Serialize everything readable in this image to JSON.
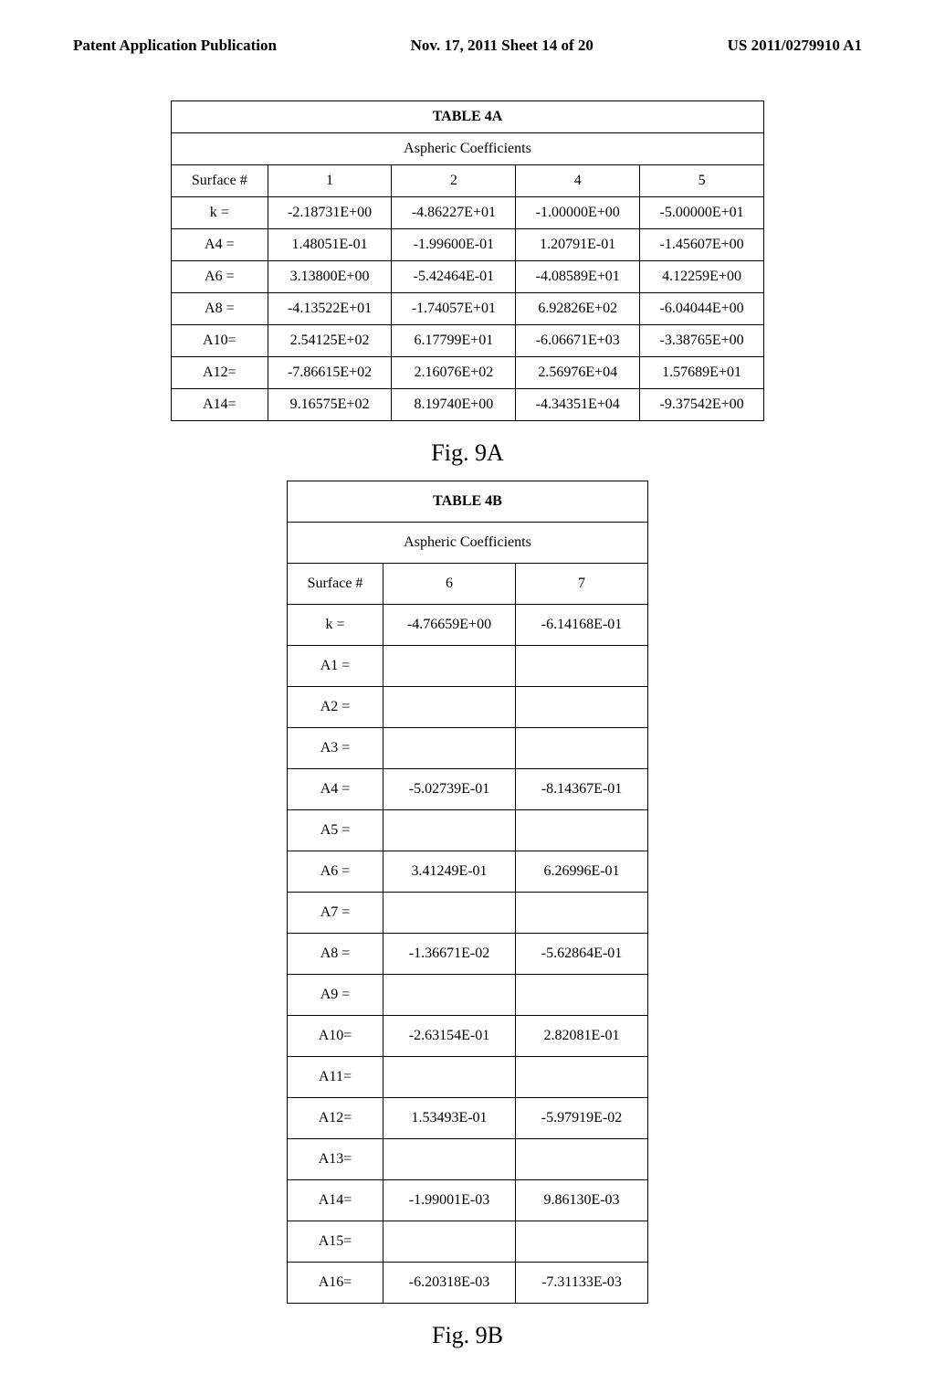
{
  "header": {
    "left": "Patent Application Publication",
    "center": "Nov. 17, 2011  Sheet 14 of 20",
    "right": "US 2011/0279910 A1"
  },
  "table4a": {
    "title": "TABLE 4A",
    "subtitle": "Aspheric Coefficients",
    "col_header_label": "Surface #",
    "columns": [
      "1",
      "2",
      "4",
      "5"
    ],
    "rows": [
      {
        "label": "k   =",
        "c1": "-2.18731E+00",
        "c2": "-4.86227E+01",
        "c4": "-1.00000E+00",
        "c5": "-5.00000E+01"
      },
      {
        "label": "A4 =",
        "c1": "1.48051E-01",
        "c2": "-1.99600E-01",
        "c4": "1.20791E-01",
        "c5": "-1.45607E+00"
      },
      {
        "label": "A6 =",
        "c1": "3.13800E+00",
        "c2": "-5.42464E-01",
        "c4": "-4.08589E+01",
        "c5": "4.12259E+00"
      },
      {
        "label": "A8 =",
        "c1": "-4.13522E+01",
        "c2": "-1.74057E+01",
        "c4": "6.92826E+02",
        "c5": "-6.04044E+00"
      },
      {
        "label": "A10=",
        "c1": "2.54125E+02",
        "c2": "6.17799E+01",
        "c4": "-6.06671E+03",
        "c5": "-3.38765E+00"
      },
      {
        "label": "A12=",
        "c1": "-7.86615E+02",
        "c2": "2.16076E+02",
        "c4": "2.56976E+04",
        "c5": "1.57689E+01"
      },
      {
        "label": "A14=",
        "c1": "9.16575E+02",
        "c2": "8.19740E+00",
        "c4": "-4.34351E+04",
        "c5": "-9.37542E+00"
      }
    ]
  },
  "fig9a_caption": "Fig. 9A",
  "table4b": {
    "title": "TABLE 4B",
    "subtitle": "Aspheric Coefficients",
    "col_header_label": "Surface #",
    "columns": [
      "6",
      "7"
    ],
    "rows": [
      {
        "label": "k   =",
        "c6": "-4.76659E+00",
        "c7": "-6.14168E-01"
      },
      {
        "label": "A1 =",
        "c6": "",
        "c7": ""
      },
      {
        "label": "A2 =",
        "c6": "",
        "c7": ""
      },
      {
        "label": "A3 =",
        "c6": "",
        "c7": ""
      },
      {
        "label": "A4 =",
        "c6": "-5.02739E-01",
        "c7": "-8.14367E-01"
      },
      {
        "label": "A5 =",
        "c6": "",
        "c7": ""
      },
      {
        "label": "A6 =",
        "c6": "3.41249E-01",
        "c7": "6.26996E-01"
      },
      {
        "label": "A7 =",
        "c6": "",
        "c7": ""
      },
      {
        "label": "A8 =",
        "c6": "-1.36671E-02",
        "c7": "-5.62864E-01"
      },
      {
        "label": "A9 =",
        "c6": "",
        "c7": ""
      },
      {
        "label": "A10=",
        "c6": "-2.63154E-01",
        "c7": "2.82081E-01"
      },
      {
        "label": "A11=",
        "c6": "",
        "c7": ""
      },
      {
        "label": "A12=",
        "c6": "1.53493E-01",
        "c7": "-5.97919E-02"
      },
      {
        "label": "A13=",
        "c6": "",
        "c7": ""
      },
      {
        "label": "A14=",
        "c6": "-1.99001E-03",
        "c7": "9.86130E-03"
      },
      {
        "label": "A15=",
        "c6": "",
        "c7": ""
      },
      {
        "label": "A16=",
        "c6": "-6.20318E-03",
        "c7": "-7.31133E-03"
      }
    ]
  },
  "fig9b_caption": "Fig. 9B"
}
